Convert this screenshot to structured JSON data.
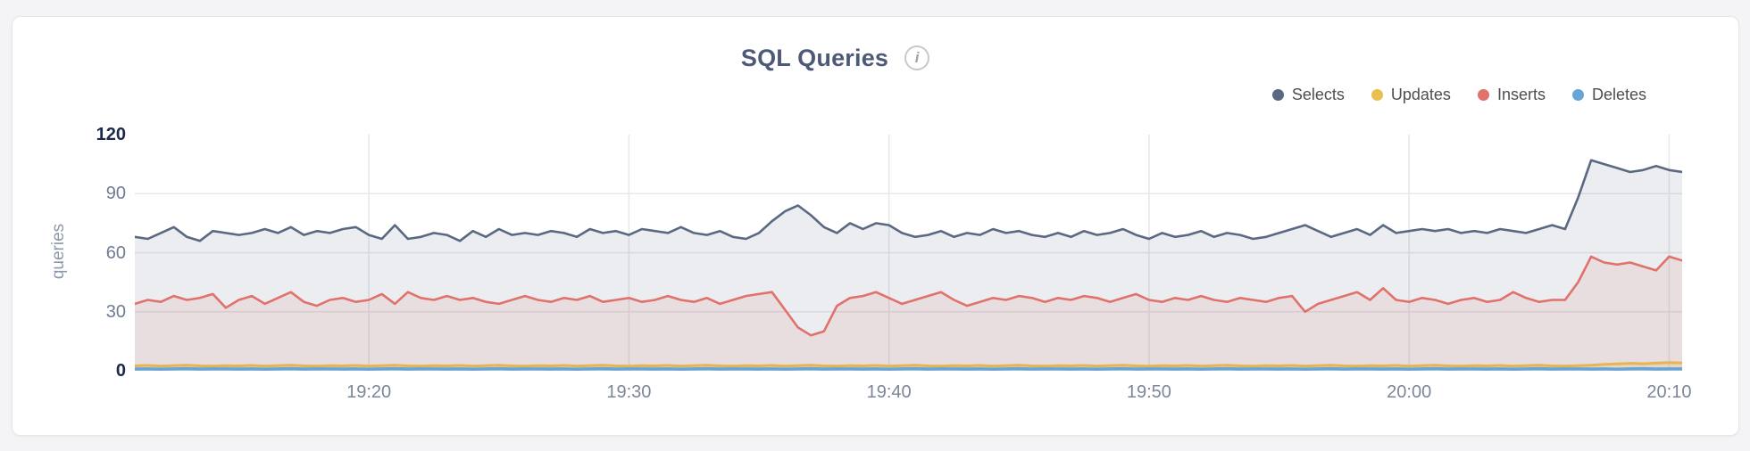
{
  "header": {
    "title": "SQL Queries",
    "info_glyph": "i"
  },
  "chart_data": {
    "type": "area",
    "title": "SQL Queries",
    "xlabel": "",
    "ylabel": "queries",
    "ylim": [
      0,
      120
    ],
    "y_ticks": [
      0,
      30,
      60,
      90,
      120
    ],
    "y_emphasized": [
      0,
      120
    ],
    "grid": true,
    "legend_position": "top-right",
    "time_window_start": "19:11",
    "t_step_minutes": 0.5,
    "t_max_minutes": 59.5,
    "x_ticks": [
      {
        "t": 9,
        "label": "19:20"
      },
      {
        "t": 19,
        "label": "19:30"
      },
      {
        "t": 29,
        "label": "19:40"
      },
      {
        "t": 39,
        "label": "19:50"
      },
      {
        "t": 49,
        "label": "20:00"
      },
      {
        "t": 59,
        "label": "20:10"
      }
    ],
    "series": [
      {
        "name": "Selects",
        "color": "#5b6882",
        "fill_opacity": 0.12,
        "values": [
          68,
          67,
          70,
          73,
          68,
          66,
          71,
          70,
          69,
          70,
          72,
          70,
          73,
          69,
          71,
          70,
          72,
          73,
          69,
          67,
          74,
          67,
          68,
          70,
          69,
          66,
          71,
          68,
          72,
          69,
          70,
          69,
          71,
          70,
          68,
          72,
          70,
          71,
          69,
          72,
          71,
          70,
          73,
          70,
          69,
          71,
          68,
          67,
          70,
          76,
          81,
          84,
          79,
          73,
          70,
          75,
          72,
          75,
          74,
          70,
          68,
          69,
          71,
          68,
          70,
          69,
          72,
          70,
          71,
          69,
          68,
          70,
          68,
          71,
          69,
          70,
          72,
          69,
          67,
          70,
          68,
          69,
          71,
          68,
          70,
          69,
          67,
          68,
          70,
          72,
          74,
          71,
          68,
          70,
          72,
          69,
          74,
          70,
          71,
          72,
          71,
          72,
          70,
          71,
          70,
          72,
          71,
          70,
          72,
          74,
          72,
          88,
          107,
          105,
          103,
          101,
          102,
          104,
          102,
          101
        ]
      },
      {
        "name": "Updates",
        "color": "#e8bf50",
        "fill_opacity": 0.18,
        "values": [
          2.5,
          2.7,
          2.4,
          2.6,
          2.8,
          2.5,
          2.4,
          2.6,
          2.5,
          2.7,
          2.4,
          2.6,
          2.8,
          2.5,
          2.4,
          2.6,
          2.5,
          2.7,
          2.4,
          2.6,
          2.8,
          2.5,
          2.4,
          2.6,
          2.5,
          2.7,
          2.4,
          2.6,
          2.8,
          2.5,
          2.4,
          2.6,
          2.5,
          2.7,
          2.4,
          2.6,
          2.8,
          2.5,
          2.4,
          2.6,
          2.5,
          2.7,
          2.4,
          2.6,
          2.8,
          2.5,
          2.4,
          2.6,
          2.5,
          2.7,
          2.4,
          2.6,
          2.8,
          2.5,
          2.4,
          2.6,
          2.5,
          2.7,
          2.4,
          2.6,
          2.8,
          2.5,
          2.4,
          2.6,
          2.5,
          2.7,
          2.4,
          2.6,
          2.8,
          2.5,
          2.4,
          2.6,
          2.5,
          2.7,
          2.4,
          2.6,
          2.8,
          2.5,
          2.4,
          2.6,
          2.5,
          2.7,
          2.4,
          2.6,
          2.8,
          2.5,
          2.4,
          2.6,
          2.5,
          2.7,
          2.4,
          2.6,
          2.8,
          2.5,
          2.4,
          2.6,
          2.5,
          2.7,
          2.4,
          2.6,
          2.8,
          2.5,
          2.4,
          2.6,
          2.5,
          2.7,
          2.4,
          2.6,
          2.8,
          2.5,
          2.4,
          2.6,
          2.8,
          3.2,
          3.5,
          3.8,
          3.6,
          3.9,
          4.2,
          4.0
        ]
      },
      {
        "name": "Inserts",
        "color": "#e0716b",
        "fill_opacity": 0.12,
        "values": [
          34,
          36,
          35,
          38,
          36,
          37,
          39,
          32,
          36,
          38,
          34,
          37,
          40,
          35,
          33,
          36,
          37,
          35,
          36,
          39,
          34,
          40,
          37,
          36,
          38,
          36,
          37,
          35,
          34,
          36,
          38,
          36,
          35,
          37,
          36,
          38,
          35,
          36,
          37,
          35,
          36,
          38,
          36,
          35,
          37,
          34,
          36,
          38,
          39,
          40,
          31,
          22,
          18,
          20,
          33,
          37,
          38,
          40,
          37,
          34,
          36,
          38,
          40,
          36,
          33,
          35,
          37,
          36,
          38,
          37,
          35,
          37,
          36,
          38,
          37,
          35,
          37,
          39,
          36,
          35,
          37,
          36,
          38,
          36,
          35,
          37,
          36,
          35,
          37,
          38,
          30,
          34,
          36,
          38,
          40,
          36,
          42,
          36,
          35,
          37,
          36,
          34,
          36,
          37,
          35,
          36,
          40,
          37,
          35,
          36,
          36,
          45,
          58,
          55,
          54,
          55,
          53,
          51,
          58,
          56
        ]
      },
      {
        "name": "Deletes",
        "color": "#65a5d8",
        "fill_opacity": 0.2,
        "values": [
          0.9,
          1.0,
          0.8,
          1.0,
          1.1,
          0.9,
          1.0,
          1.0,
          0.9,
          1.0,
          0.8,
          1.0,
          1.1,
          0.9,
          1.0,
          1.0,
          0.9,
          1.0,
          0.8,
          1.0,
          1.1,
          0.9,
          1.0,
          1.0,
          0.9,
          1.0,
          0.8,
          1.0,
          1.1,
          0.9,
          1.0,
          1.0,
          0.9,
          1.0,
          0.8,
          1.0,
          1.1,
          0.9,
          1.0,
          1.0,
          0.9,
          1.0,
          0.8,
          1.0,
          1.1,
          0.9,
          1.0,
          1.0,
          0.9,
          1.0,
          0.8,
          1.0,
          1.1,
          0.9,
          1.0,
          1.0,
          0.9,
          1.0,
          0.8,
          1.0,
          1.1,
          0.9,
          1.0,
          1.0,
          0.9,
          1.0,
          0.8,
          1.0,
          1.1,
          0.9,
          1.0,
          1.0,
          0.9,
          1.0,
          0.8,
          1.0,
          1.1,
          0.9,
          1.0,
          1.0,
          0.9,
          1.0,
          0.8,
          1.0,
          1.1,
          0.9,
          1.0,
          1.0,
          0.9,
          1.0,
          0.8,
          1.0,
          1.1,
          0.9,
          1.0,
          1.0,
          0.9,
          1.0,
          0.8,
          1.0,
          1.1,
          0.9,
          1.0,
          1.0,
          0.9,
          1.0,
          0.8,
          1.0,
          1.1,
          0.9,
          1.0,
          1.0,
          0.9,
          1.0,
          0.8,
          1.0,
          1.1,
          0.9,
          1.0,
          1.0
        ]
      }
    ],
    "colors": {
      "grid_vertical": "#e8e8ec",
      "grid_horizontal": "#eae8eb",
      "axis_label": "#7b8699",
      "axis_label_emphasis": "#1b2a4a"
    }
  }
}
